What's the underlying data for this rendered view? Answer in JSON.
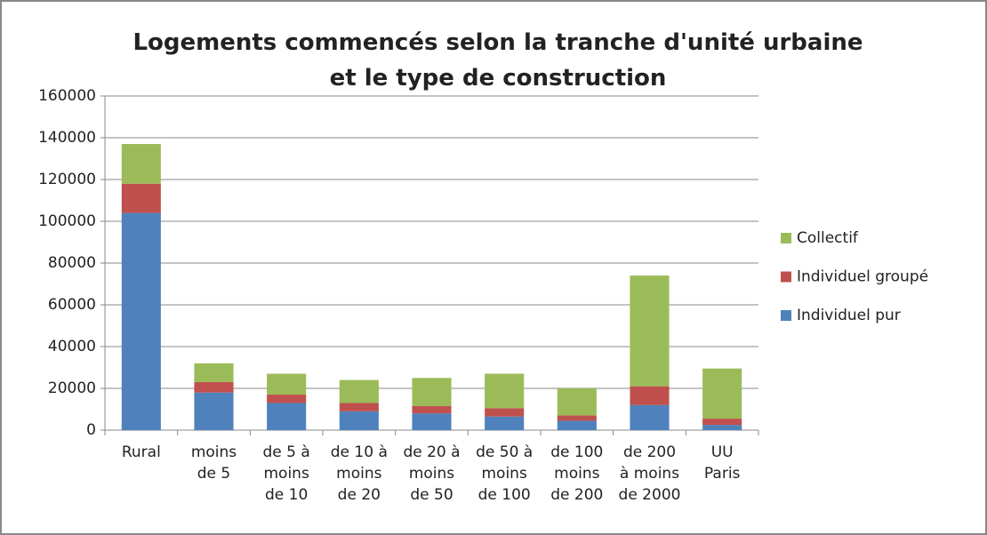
{
  "chart_data": {
    "type": "stacked_bar",
    "title": "Logements commencés selon la tranche d'unité urbaine\net le type de construction",
    "categories": [
      "Rural",
      "moins\nde 5",
      "de 5 à\nmoins\nde 10",
      "de 10 à\nmoins\nde 20",
      "de 20 à\nmoins\nde 50",
      "de 50 à\nmoins\nde 100",
      "de 100\nmoins\nde 200",
      "de 200\nà moins\nde 2000",
      "UU\nParis"
    ],
    "series": [
      {
        "name": "Individuel pur",
        "color": "#4f81bd",
        "values": [
          104000,
          18000,
          13000,
          9000,
          8000,
          6500,
          4500,
          12000,
          2500
        ]
      },
      {
        "name": "Individuel groupé",
        "color": "#c0504d",
        "values": [
          14000,
          5000,
          4000,
          4000,
          3500,
          4000,
          2500,
          9000,
          3000
        ]
      },
      {
        "name": "Collectif",
        "color": "#9bbb59",
        "values": [
          19000,
          9000,
          10000,
          11000,
          13500,
          16500,
          13000,
          53000,
          24000
        ]
      }
    ],
    "ylim": [
      0,
      160000
    ],
    "yticks": [
      0,
      20000,
      40000,
      60000,
      80000,
      100000,
      120000,
      140000,
      160000
    ],
    "grid": true,
    "legend": "right"
  }
}
